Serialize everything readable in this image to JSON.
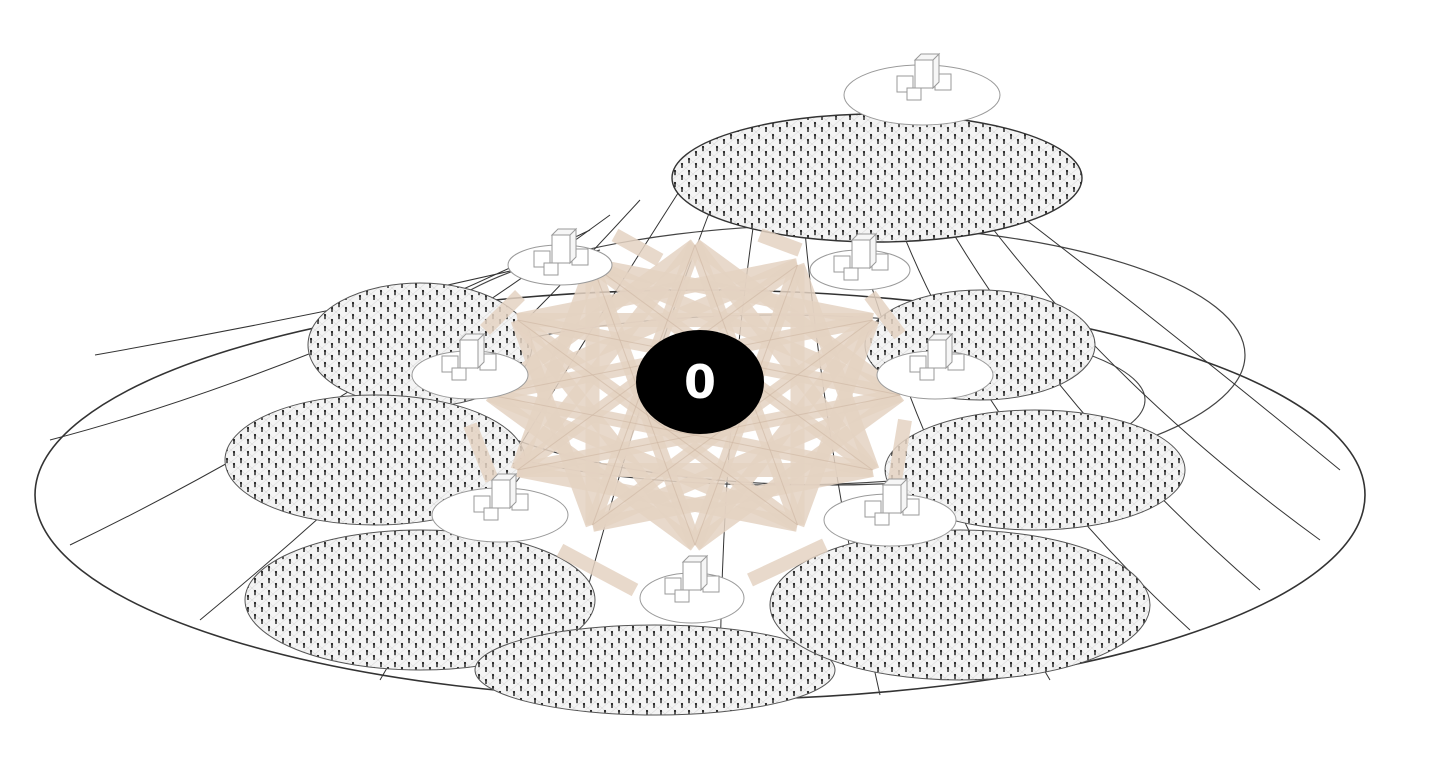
{
  "diagram": {
    "center_node": {
      "label": "0",
      "fill": "#000000",
      "text_color": "#ffffff"
    },
    "colors": {
      "outline": "#333333",
      "disc_texture": "#d9d9d9",
      "people": "#1a1a1a",
      "links": "#e4d2c2",
      "link_edge": "#cdb6a2",
      "building_stroke": "#9a9a9a"
    },
    "settlement_count": 8,
    "settlement_icon": "building-cluster-icon",
    "population_icon": "person-figure-icon"
  }
}
